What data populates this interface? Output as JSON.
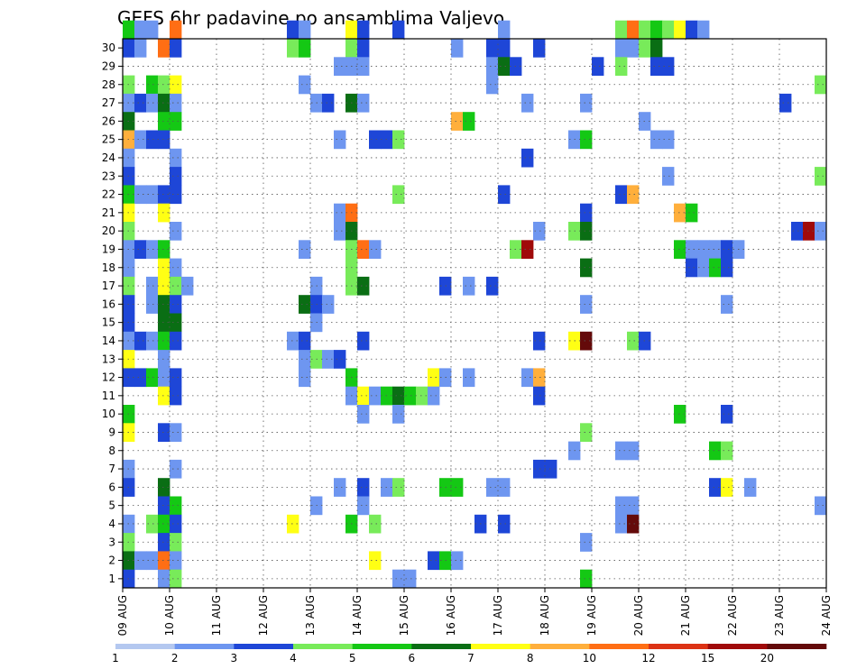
{
  "chart_data": {
    "type": "heatmap",
    "title": "GEFS 6hr padavine po ansamblima Valjevo",
    "xlabel": "",
    "ylabel": "",
    "x_ticks": [
      "09 AUG",
      "10 AUG",
      "11 AUG",
      "12 AUG",
      "13 AUG",
      "14 AUG",
      "15 AUG",
      "16 AUG",
      "17 AUG",
      "18 AUG",
      "19 AUG",
      "20 AUG",
      "21 AUG",
      "22 AUG",
      "23 AUG",
      "24 AUG"
    ],
    "y_ticks": [
      "1",
      "2",
      "3",
      "4",
      "5",
      "6",
      "7",
      "8",
      "9",
      "10",
      "11",
      "12",
      "13",
      "14",
      "15",
      "16",
      "17",
      "18",
      "19",
      "20",
      "21",
      "22",
      "23",
      "24",
      "25",
      "26",
      "27",
      "28",
      "29",
      "30"
    ],
    "xlim": [
      0,
      60
    ],
    "ylim": [
      0,
      30
    ],
    "grid": true,
    "grid_style": "dotted",
    "colorbar": {
      "levels": [
        "1",
        "2",
        "3",
        "4",
        "5",
        "6",
        "7",
        "8",
        "10",
        "12",
        "15",
        "20"
      ],
      "colors": [
        "#b4c8f0",
        "#6e96f0",
        "#1e46d7",
        "#78eb5a",
        "#14c814",
        "#0a6e14",
        "#ffff14",
        "#ffaf3c",
        "#ff6e14",
        "#dc3214",
        "#a00a0a",
        "#640a0a"
      ]
    },
    "cells": [
      [
        0,
        30,
        4
      ],
      [
        1,
        30,
        1
      ],
      [
        2,
        30,
        1
      ],
      [
        4,
        30,
        8
      ],
      [
        14,
        30,
        2
      ],
      [
        15,
        30,
        1
      ],
      [
        19,
        30,
        6
      ],
      [
        20,
        30,
        2
      ],
      [
        23,
        30,
        2
      ],
      [
        32,
        30,
        1
      ],
      [
        42,
        30,
        3
      ],
      [
        43,
        30,
        8
      ],
      [
        44,
        30,
        3
      ],
      [
        45,
        30,
        4
      ],
      [
        46,
        30,
        3
      ],
      [
        47,
        30,
        6
      ],
      [
        48,
        30,
        2
      ],
      [
        49,
        30,
        1
      ],
      [
        0,
        29,
        2
      ],
      [
        1,
        29,
        1
      ],
      [
        3,
        29,
        8
      ],
      [
        4,
        29,
        2
      ],
      [
        14,
        29,
        3
      ],
      [
        15,
        29,
        4
      ],
      [
        19,
        29,
        3
      ],
      [
        20,
        29,
        2
      ],
      [
        28,
        29,
        1
      ],
      [
        31,
        29,
        2
      ],
      [
        32,
        29,
        2
      ],
      [
        35,
        29,
        2
      ],
      [
        42,
        29,
        1
      ],
      [
        43,
        29,
        1
      ],
      [
        44,
        29,
        3
      ],
      [
        45,
        29,
        5
      ],
      [
        18,
        28,
        1
      ],
      [
        19,
        28,
        1
      ],
      [
        20,
        28,
        1
      ],
      [
        31,
        28,
        1
      ],
      [
        32,
        28,
        5
      ],
      [
        33,
        28,
        2
      ],
      [
        40,
        28,
        2
      ],
      [
        42,
        28,
        3
      ],
      [
        45,
        28,
        2
      ],
      [
        46,
        28,
        2
      ],
      [
        0,
        27,
        3
      ],
      [
        2,
        27,
        4
      ],
      [
        3,
        27,
        3
      ],
      [
        4,
        27,
        6
      ],
      [
        15,
        27,
        1
      ],
      [
        31,
        27,
        1
      ],
      [
        59,
        27,
        3
      ],
      [
        0,
        26,
        1
      ],
      [
        1,
        26,
        2
      ],
      [
        2,
        26,
        1
      ],
      [
        3,
        26,
        5
      ],
      [
        4,
        26,
        1
      ],
      [
        16,
        26,
        1
      ],
      [
        17,
        26,
        2
      ],
      [
        19,
        26,
        5
      ],
      [
        20,
        26,
        1
      ],
      [
        34,
        26,
        1
      ],
      [
        39,
        26,
        1
      ],
      [
        56,
        26,
        2
      ],
      [
        0,
        25,
        5
      ],
      [
        3,
        25,
        4
      ],
      [
        4,
        25,
        4
      ],
      [
        28,
        25,
        7
      ],
      [
        29,
        25,
        4
      ],
      [
        44,
        25,
        1
      ],
      [
        0,
        24,
        7
      ],
      [
        1,
        24,
        1
      ],
      [
        2,
        24,
        2
      ],
      [
        3,
        24,
        2
      ],
      [
        18,
        24,
        1
      ],
      [
        21,
        24,
        2
      ],
      [
        22,
        24,
        2
      ],
      [
        23,
        24,
        3
      ],
      [
        38,
        24,
        1
      ],
      [
        39,
        24,
        4
      ],
      [
        45,
        24,
        1
      ],
      [
        46,
        24,
        1
      ],
      [
        0,
        23,
        1
      ],
      [
        4,
        23,
        1
      ],
      [
        34,
        23,
        2
      ],
      [
        0,
        22,
        2
      ],
      [
        4,
        22,
        2
      ],
      [
        46,
        22,
        1
      ],
      [
        59,
        22,
        3
      ],
      [
        0,
        21,
        4
      ],
      [
        1,
        21,
        1
      ],
      [
        2,
        21,
        1
      ],
      [
        3,
        21,
        2
      ],
      [
        4,
        21,
        2
      ],
      [
        23,
        21,
        3
      ],
      [
        32,
        21,
        2
      ],
      [
        42,
        21,
        2
      ],
      [
        43,
        21,
        7
      ],
      [
        0,
        20,
        6
      ],
      [
        3,
        20,
        6
      ],
      [
        18,
        20,
        1
      ],
      [
        19,
        20,
        8
      ],
      [
        39,
        20,
        2
      ],
      [
        47,
        20,
        7
      ],
      [
        48,
        20,
        4
      ],
      [
        0,
        19,
        3
      ],
      [
        4,
        19,
        1
      ],
      [
        18,
        19,
        1
      ],
      [
        19,
        19,
        5
      ],
      [
        35,
        19,
        1
      ],
      [
        38,
        19,
        3
      ],
      [
        39,
        19,
        5
      ],
      [
        57,
        19,
        2
      ],
      [
        58,
        19,
        10
      ],
      [
        59,
        19,
        1
      ],
      [
        0,
        18,
        1
      ],
      [
        1,
        18,
        2
      ],
      [
        2,
        18,
        1
      ],
      [
        3,
        18,
        4
      ],
      [
        15,
        18,
        1
      ],
      [
        19,
        18,
        3
      ],
      [
        20,
        18,
        8
      ],
      [
        21,
        18,
        1
      ],
      [
        33,
        18,
        3
      ],
      [
        34,
        18,
        10
      ],
      [
        47,
        18,
        4
      ],
      [
        48,
        18,
        1
      ],
      [
        49,
        18,
        1
      ],
      [
        50,
        18,
        1
      ],
      [
        51,
        18,
        2
      ],
      [
        52,
        18,
        1
      ],
      [
        0,
        17,
        1
      ],
      [
        3,
        17,
        6
      ],
      [
        4,
        17,
        1
      ],
      [
        19,
        17,
        3
      ],
      [
        39,
        17,
        5
      ],
      [
        48,
        17,
        2
      ],
      [
        49,
        17,
        1
      ],
      [
        50,
        17,
        4
      ],
      [
        51,
        17,
        2
      ],
      [
        0,
        16,
        3
      ],
      [
        2,
        16,
        1
      ],
      [
        3,
        16,
        6
      ],
      [
        4,
        16,
        3
      ],
      [
        5,
        16,
        1
      ],
      [
        16,
        16,
        1
      ],
      [
        19,
        16,
        3
      ],
      [
        20,
        16,
        5
      ],
      [
        27,
        16,
        2
      ],
      [
        29,
        16,
        1
      ],
      [
        31,
        16,
        2
      ],
      [
        0,
        15,
        2
      ],
      [
        2,
        15,
        1
      ],
      [
        3,
        15,
        5
      ],
      [
        4,
        15,
        2
      ],
      [
        15,
        15,
        5
      ],
      [
        16,
        15,
        2
      ],
      [
        17,
        15,
        1
      ],
      [
        39,
        15,
        1
      ],
      [
        51,
        15,
        1
      ],
      [
        0,
        14,
        2
      ],
      [
        3,
        14,
        5
      ],
      [
        4,
        14,
        5
      ],
      [
        16,
        14,
        1
      ],
      [
        0,
        13,
        1
      ],
      [
        1,
        13,
        2
      ],
      [
        2,
        13,
        1
      ],
      [
        3,
        13,
        4
      ],
      [
        4,
        13,
        2
      ],
      [
        14,
        13,
        1
      ],
      [
        15,
        13,
        2
      ],
      [
        20,
        13,
        2
      ],
      [
        35,
        13,
        2
      ],
      [
        38,
        13,
        6
      ],
      [
        39,
        13,
        11
      ],
      [
        43,
        13,
        3
      ],
      [
        44,
        13,
        2
      ],
      [
        0,
        12,
        6
      ],
      [
        3,
        12,
        1
      ],
      [
        15,
        12,
        1
      ],
      [
        16,
        12,
        3
      ],
      [
        17,
        12,
        1
      ],
      [
        18,
        12,
        2
      ],
      [
        0,
        11,
        2
      ],
      [
        1,
        11,
        2
      ],
      [
        2,
        11,
        4
      ],
      [
        3,
        11,
        1
      ],
      [
        4,
        11,
        2
      ],
      [
        15,
        11,
        1
      ],
      [
        19,
        11,
        4
      ],
      [
        26,
        11,
        6
      ],
      [
        27,
        11,
        1
      ],
      [
        29,
        11,
        1
      ],
      [
        34,
        11,
        1
      ],
      [
        35,
        11,
        7
      ],
      [
        3,
        10,
        6
      ],
      [
        4,
        10,
        2
      ],
      [
        19,
        10,
        1
      ],
      [
        20,
        10,
        6
      ],
      [
        21,
        10,
        1
      ],
      [
        22,
        10,
        4
      ],
      [
        23,
        10,
        5
      ],
      [
        24,
        10,
        4
      ],
      [
        25,
        10,
        3
      ],
      [
        26,
        10,
        1
      ],
      [
        35,
        10,
        2
      ],
      [
        0,
        9,
        4
      ],
      [
        20,
        9,
        1
      ],
      [
        23,
        9,
        1
      ],
      [
        47,
        9,
        4
      ],
      [
        51,
        9,
        2
      ],
      [
        0,
        8,
        6
      ],
      [
        3,
        8,
        2
      ],
      [
        4,
        8,
        1
      ],
      [
        39,
        8,
        3
      ],
      [
        38,
        7,
        1
      ],
      [
        42,
        7,
        1
      ],
      [
        43,
        7,
        1
      ],
      [
        50,
        7,
        4
      ],
      [
        51,
        7,
        3
      ],
      [
        0,
        6,
        1
      ],
      [
        4,
        6,
        1
      ],
      [
        35,
        6,
        2
      ],
      [
        36,
        6,
        2
      ],
      [
        0,
        5,
        2
      ],
      [
        3,
        5,
        5
      ],
      [
        18,
        5,
        1
      ],
      [
        20,
        5,
        2
      ],
      [
        22,
        5,
        1
      ],
      [
        23,
        5,
        3
      ],
      [
        27,
        5,
        4
      ],
      [
        28,
        5,
        4
      ],
      [
        31,
        5,
        1
      ],
      [
        32,
        5,
        1
      ],
      [
        50,
        5,
        2
      ],
      [
        51,
        5,
        6
      ],
      [
        53,
        5,
        1
      ],
      [
        3,
        4,
        2
      ],
      [
        4,
        4,
        4
      ],
      [
        16,
        4,
        1
      ],
      [
        20,
        4,
        1
      ],
      [
        42,
        4,
        1
      ],
      [
        43,
        4,
        1
      ],
      [
        59,
        4,
        1
      ],
      [
        0,
        3,
        1
      ],
      [
        2,
        3,
        3
      ],
      [
        3,
        3,
        4
      ],
      [
        4,
        3,
        2
      ],
      [
        14,
        3,
        6
      ],
      [
        19,
        3,
        4
      ],
      [
        21,
        3,
        3
      ],
      [
        30,
        3,
        2
      ],
      [
        32,
        3,
        2
      ],
      [
        42,
        3,
        1
      ],
      [
        43,
        3,
        11
      ],
      [
        0,
        2,
        3
      ],
      [
        3,
        2,
        2
      ],
      [
        4,
        2,
        3
      ],
      [
        39,
        2,
        1
      ],
      [
        0,
        1,
        5
      ],
      [
        1,
        1,
        1
      ],
      [
        2,
        1,
        1
      ],
      [
        3,
        1,
        8
      ],
      [
        4,
        1,
        1
      ],
      [
        21,
        1,
        6
      ],
      [
        26,
        1,
        2
      ],
      [
        27,
        1,
        4
      ],
      [
        28,
        1,
        1
      ],
      [
        0,
        0,
        2
      ],
      [
        3,
        0,
        1
      ],
      [
        4,
        0,
        3
      ],
      [
        23,
        0,
        1
      ],
      [
        24,
        0,
        1
      ],
      [
        39,
        0,
        4
      ]
    ]
  }
}
